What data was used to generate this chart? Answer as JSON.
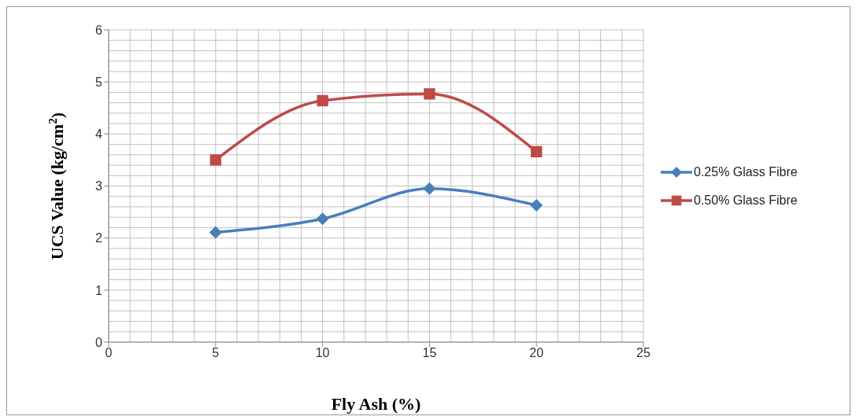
{
  "chart_data": {
    "type": "line",
    "xlabel": "Fly Ash (%)",
    "ylabel": "UCS Value  (kg/cm$^{2}$)",
    "x": [
      5,
      10,
      15,
      20
    ],
    "series": [
      {
        "name": "0.25% Glass Fibre",
        "color": "#4a7ebb",
        "marker": "diamond",
        "values": [
          2.11,
          2.37,
          2.95,
          2.63
        ]
      },
      {
        "name": "0.50% Glass Fibre",
        "color": "#be4b48",
        "marker": "square",
        "values": [
          3.5,
          4.64,
          4.77,
          3.66
        ]
      }
    ],
    "xlim": [
      0,
      25
    ],
    "xticks": [
      0,
      5,
      10,
      15,
      20,
      25
    ],
    "ylim": [
      0,
      6
    ],
    "yticks": [
      0,
      1,
      2,
      3,
      4,
      5,
      6
    ],
    "grid": true,
    "legend": "right"
  }
}
